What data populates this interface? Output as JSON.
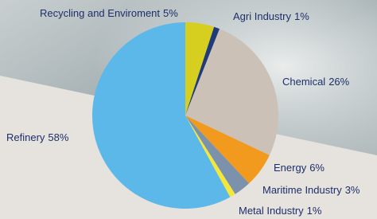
{
  "chart_data": {
    "type": "pie",
    "categories": [
      "Recycling and Enviroment",
      "Agri Industry",
      "Chemical",
      "Energy",
      "Maritime Industry",
      "Metal Industry",
      "Refinery"
    ],
    "values": [
      5,
      1,
      26,
      6,
      3,
      1,
      58
    ],
    "value_labels": [
      "5%",
      "1%",
      "26%",
      "6%",
      "3%",
      "1%",
      "58%"
    ],
    "colors": [
      "#d6cf1f",
      "#1f3c78",
      "#cbc1b6",
      "#f29a1d",
      "#7c91ab",
      "#f3e73a",
      "#5cb8e8"
    ]
  }
}
